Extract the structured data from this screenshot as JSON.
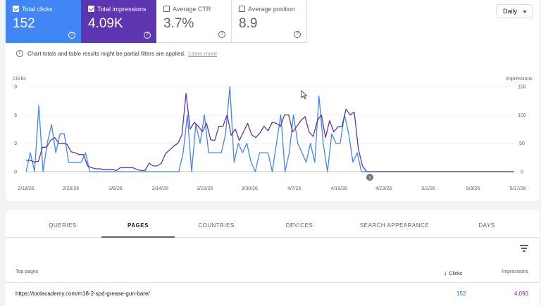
{
  "metrics": {
    "clicks": {
      "label": "Total clicks",
      "value": "152",
      "selected": true,
      "color": "#4285f4"
    },
    "impressions": {
      "label": "Total impressions",
      "value": "4.09K",
      "selected": true,
      "color": "#5e35b1"
    },
    "ctr": {
      "label": "Average CTR",
      "value": "3.7%",
      "selected": false
    },
    "position": {
      "label": "Average position",
      "value": "8.9",
      "selected": false
    }
  },
  "help_glyph": "?",
  "granularity": {
    "selected": "Daily"
  },
  "info": {
    "icon": "i",
    "text": "Chart totals and table results might be partial filters are applied.",
    "learn_more": "Learn more"
  },
  "chart_data": {
    "type": "line",
    "left_axis_title": "Clicks",
    "right_axis_title": "Impressions",
    "left_ticks": [
      "0",
      "3",
      "6",
      "9"
    ],
    "right_ticks": [
      "0",
      "50",
      "100",
      "150"
    ],
    "left_range": [
      0,
      9
    ],
    "right_range": [
      0,
      150
    ],
    "x_tick_labels": [
      "2/18/26",
      "2/26/26",
      "3/6/26",
      "3/14/26",
      "3/22/26",
      "3/30/26",
      "4/7/26",
      "4/15/26",
      "4/23/26",
      "5/1/26",
      "5/9/26",
      "5/17/26"
    ],
    "annotation": "1",
    "series": [
      {
        "axis": "left",
        "color": "#4285f4",
        "values": [
          0,
          2,
          0,
          7,
          0,
          3,
          5,
          2,
          4,
          4,
          1,
          1,
          1,
          1,
          2,
          0,
          0,
          0,
          0,
          0,
          0,
          0,
          0,
          0,
          0,
          0,
          0,
          0,
          0,
          0,
          0,
          0,
          0,
          0,
          0,
          0,
          0,
          2,
          6,
          0,
          5,
          3,
          6,
          2,
          2,
          2,
          2,
          4,
          9,
          1,
          3,
          2,
          3,
          1,
          0,
          2,
          2,
          2,
          0,
          3,
          6,
          0,
          2,
          6,
          3,
          2,
          1,
          3,
          1,
          8,
          3,
          0,
          4,
          3,
          3,
          6,
          4,
          1,
          2,
          0,
          0,
          0,
          0,
          0,
          0,
          0,
          0,
          0,
          0,
          0,
          0,
          0,
          0,
          0,
          0,
          0,
          0,
          0,
          0,
          0,
          0,
          0,
          0,
          0,
          0,
          0,
          0,
          0,
          0,
          0,
          0,
          0,
          0,
          0,
          0,
          0
        ]
      },
      {
        "axis": "right",
        "color": "#5e35b1",
        "values": [
          20,
          20,
          17,
          18,
          43,
          43,
          55,
          60,
          50,
          50,
          48,
          35,
          33,
          30,
          30,
          10,
          7,
          5,
          5,
          4,
          4,
          4,
          2,
          7,
          7,
          7,
          7,
          4,
          2,
          2,
          15,
          10,
          10,
          15,
          32,
          38,
          45,
          50,
          65,
          138,
          75,
          87,
          80,
          70,
          85,
          56,
          55,
          80,
          80,
          100,
          64,
          75,
          55,
          70,
          85,
          65,
          60,
          68,
          80,
          72,
          87,
          85,
          80,
          100,
          100,
          70,
          80,
          90,
          97,
          70,
          62,
          90,
          100,
          60,
          90,
          70,
          79,
          80,
          110,
          100,
          105,
          40,
          10,
          0,
          0,
          0,
          0,
          0,
          0,
          0,
          0,
          0,
          0,
          0,
          0,
          0,
          0,
          0,
          0,
          0,
          0,
          0,
          0,
          0,
          0,
          0,
          0,
          0,
          0,
          0,
          0,
          0,
          0,
          0,
          0,
          0,
          0,
          0,
          0,
          0
        ]
      }
    ]
  },
  "tabs": [
    {
      "label": "QUERIES",
      "active": false
    },
    {
      "label": "PAGES",
      "active": true
    },
    {
      "label": "COUNTRIES",
      "active": false
    },
    {
      "label": "DEVICES",
      "active": false
    },
    {
      "label": "SEARCH APPEARANCE",
      "active": false
    },
    {
      "label": "DAYS",
      "active": false
    }
  ],
  "table": {
    "headers": {
      "page": "Top pages",
      "clicks": "Clicks",
      "impressions": "Impressions"
    },
    "sort_arrow": "↓",
    "rows": [
      {
        "page": "https://toolacademy.com/m18-2-spd-grease-gun-bare/",
        "clicks": "152",
        "impressions": "4,093"
      }
    ]
  }
}
